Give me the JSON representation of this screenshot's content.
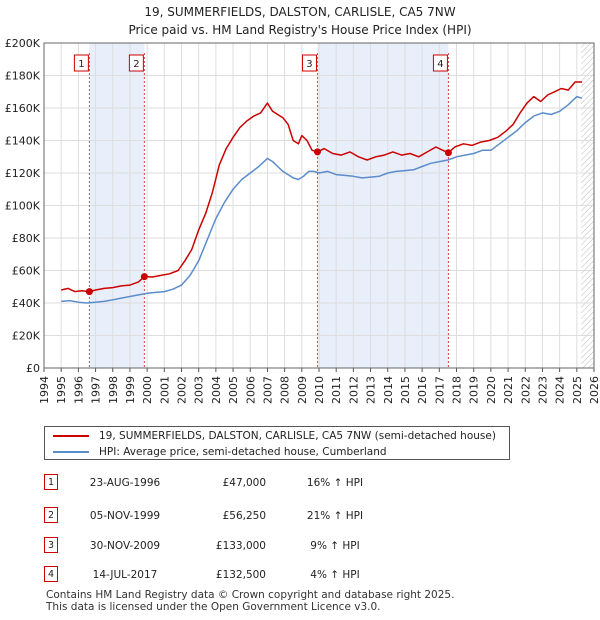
{
  "chart_data": {
    "type": "line",
    "title": "19, SUMMERFIELDS, DALSTON, CARLISLE, CA5 7NW",
    "subtitle": "Price paid vs. HM Land Registry's House Price Index (HPI)",
    "ylim": [
      0,
      200000
    ],
    "xlim": [
      1994,
      2026
    ],
    "y_ticks": [
      0,
      20000,
      40000,
      60000,
      80000,
      100000,
      120000,
      140000,
      160000,
      180000,
      200000
    ],
    "y_tick_labels": [
      "£0",
      "£20K",
      "£40K",
      "£60K",
      "£80K",
      "£100K",
      "£120K",
      "£140K",
      "£160K",
      "£180K",
      "£200K"
    ],
    "x_tick_labels": [
      "1994",
      "1995",
      "1996",
      "1997",
      "1998",
      "1999",
      "2000",
      "2001",
      "2002",
      "2003",
      "2004",
      "2005",
      "2006",
      "2007",
      "2008",
      "2009",
      "2010",
      "2011",
      "2012",
      "2013",
      "2014",
      "2015",
      "2016",
      "2017",
      "2018",
      "2019",
      "2020",
      "2021",
      "2022",
      "2023",
      "2024",
      "2025",
      "2026"
    ],
    "shaded_ranges": [
      [
        1996.64,
        1999.84
      ],
      [
        2009.91,
        2017.53
      ]
    ],
    "hatched_from": 2025.25,
    "series": [
      {
        "name": "19, SUMMERFIELDS, DALSTON, CARLISLE, CA5 7NW (semi-detached house)",
        "color": "#cc0000",
        "x": [
          1995.0,
          1995.4,
          1995.8,
          1996.2,
          1996.64,
          1997.0,
          1997.5,
          1998.0,
          1998.5,
          1999.0,
          1999.5,
          1999.84,
          2000.3,
          2000.8,
          2001.3,
          2001.8,
          2002.2,
          2002.6,
          2003.0,
          2003.4,
          2003.8,
          2004.2,
          2004.6,
          2005.0,
          2005.4,
          2005.8,
          2006.2,
          2006.6,
          2007.0,
          2007.3,
          2007.6,
          2007.9,
          2008.2,
          2008.5,
          2008.8,
          2009.0,
          2009.3,
          2009.6,
          2009.91,
          2010.3,
          2010.8,
          2011.3,
          2011.8,
          2012.3,
          2012.8,
          2013.3,
          2013.8,
          2014.3,
          2014.8,
          2015.3,
          2015.8,
          2016.3,
          2016.8,
          2017.2,
          2017.53,
          2017.9,
          2018.4,
          2018.9,
          2019.4,
          2019.9,
          2020.4,
          2020.9,
          2021.3,
          2021.7,
          2022.1,
          2022.5,
          2022.9,
          2023.3,
          2023.7,
          2024.1,
          2024.5,
          2024.9,
          2025.3
        ],
        "values": [
          48000,
          49000,
          47000,
          47500,
          47000,
          48000,
          49000,
          49500,
          50500,
          51000,
          53000,
          56250,
          56000,
          57000,
          58000,
          60000,
          66000,
          73000,
          85000,
          95000,
          108000,
          125000,
          135000,
          142000,
          148000,
          152000,
          155000,
          157000,
          163000,
          158000,
          156000,
          154000,
          150000,
          140000,
          138000,
          143000,
          140000,
          134000,
          133000,
          135000,
          132000,
          131000,
          133000,
          130000,
          128000,
          130000,
          131000,
          133000,
          131000,
          132000,
          130000,
          133000,
          136000,
          134000,
          132500,
          136000,
          138000,
          137000,
          139000,
          140000,
          142000,
          146000,
          150000,
          157000,
          163000,
          167000,
          164000,
          168000,
          170000,
          172000,
          171000,
          176000,
          176000
        ]
      },
      {
        "name": "HPI: Average price, semi-detached house, Cumberland",
        "color": "#5b8ccc",
        "x": [
          1995.0,
          1995.5,
          1996.0,
          1996.5,
          1997.0,
          1997.5,
          1998.0,
          1998.5,
          1999.0,
          1999.5,
          2000.0,
          2000.5,
          2001.0,
          2001.5,
          2002.0,
          2002.5,
          2003.0,
          2003.5,
          2004.0,
          2004.5,
          2005.0,
          2005.5,
          2006.0,
          2006.5,
          2007.0,
          2007.3,
          2007.6,
          2007.9,
          2008.2,
          2008.5,
          2008.8,
          2009.1,
          2009.4,
          2009.7,
          2010.0,
          2010.5,
          2011.0,
          2011.5,
          2012.0,
          2012.5,
          2013.0,
          2013.5,
          2014.0,
          2014.5,
          2015.0,
          2015.5,
          2016.0,
          2016.5,
          2017.0,
          2017.5,
          2018.0,
          2018.5,
          2019.0,
          2019.5,
          2020.0,
          2020.5,
          2021.0,
          2021.5,
          2022.0,
          2022.5,
          2023.0,
          2023.5,
          2024.0,
          2024.5,
          2025.0,
          2025.3
        ],
        "values": [
          41000,
          41500,
          40500,
          40000,
          40500,
          41000,
          42000,
          43000,
          44000,
          45000,
          46000,
          46500,
          47000,
          48500,
          51000,
          57000,
          66000,
          79000,
          92000,
          102000,
          110000,
          116000,
          120000,
          124000,
          129000,
          127000,
          124000,
          121000,
          119000,
          117000,
          116000,
          118000,
          121000,
          121000,
          120000,
          121000,
          119000,
          118500,
          118000,
          117000,
          117500,
          118000,
          120000,
          121000,
          121500,
          122000,
          124000,
          126000,
          127000,
          128000,
          130000,
          131000,
          132000,
          134000,
          134000,
          138000,
          142000,
          146000,
          151000,
          155000,
          157000,
          156000,
          158000,
          162000,
          167000,
          166000
        ]
      }
    ],
    "annotations": [
      {
        "label": "1",
        "x": 1996.64,
        "price": 47000
      },
      {
        "label": "2",
        "x": 1999.84,
        "price": 56250
      },
      {
        "label": "3",
        "x": 2009.91,
        "price": 133000
      },
      {
        "label": "4",
        "x": 2017.53,
        "price": 132500
      }
    ]
  },
  "legend": {
    "property_label": "19, SUMMERFIELDS, DALSTON, CARLISLE, CA5 7NW (semi-detached house)",
    "hpi_label": "HPI: Average price, semi-detached house, Cumberland"
  },
  "transactions": [
    {
      "num": "1",
      "date": "23-AUG-1996",
      "price": "£47,000",
      "hpi": "16% ↑ HPI"
    },
    {
      "num": "2",
      "date": "05-NOV-1999",
      "price": "£56,250",
      "hpi": "21% ↑ HPI"
    },
    {
      "num": "3",
      "date": "30-NOV-2009",
      "price": "£133,000",
      "hpi": "9% ↑ HPI"
    },
    {
      "num": "4",
      "date": "14-JUL-2017",
      "price": "£132,500",
      "hpi": "4% ↑ HPI"
    }
  ],
  "footer": {
    "line1": "Contains HM Land Registry data © Crown copyright and database right 2025.",
    "line2": "This data is licensed under the Open Government Licence v3.0."
  }
}
